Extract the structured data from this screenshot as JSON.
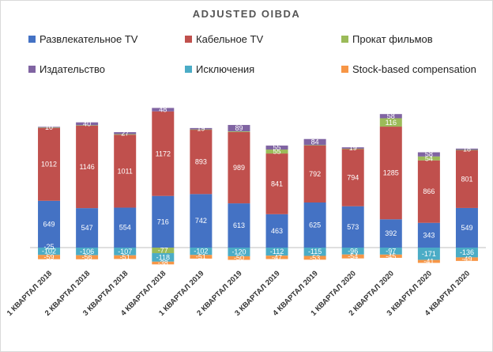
{
  "chart_data": {
    "type": "bar",
    "stacked": true,
    "title": "ADJUSTED OIBDA",
    "categories": [
      "1 КВАРТАЛ 2018",
      "2 КВАРТАЛ 2018",
      "3 КВАРТАЛ 2018",
      "4 КВАРТАЛ 2018",
      "1 КВАРТАЛ 2019",
      "2 КВАРТАЛ 2019",
      "3 КВАРТАЛ 2019",
      "4 КВАРТАЛ 2019",
      "1 КВАРТАЛ 2020",
      "2 КВАРТАЛ 2020",
      "3 КВАРТАЛ 2020",
      "4 КВАРТАЛ 2020"
    ],
    "series": [
      {
        "name": "Развлекательное TV",
        "color": "#4472C4",
        "values": [
          649,
          547,
          554,
          716,
          742,
          613,
          463,
          625,
          573,
          392,
          343,
          549
        ]
      },
      {
        "name": "Кабельное TV",
        "color": "#C0504D",
        "values": [
          1012,
          1146,
          1011,
          1172,
          893,
          989,
          841,
          792,
          794,
          1285,
          866,
          801
        ]
      },
      {
        "name": "Прокат фильмов",
        "color": "#9BBB59",
        "values": [
          3,
          3,
          8,
          -77,
          3,
          9,
          55,
          4,
          4,
          116,
          54,
          4
        ]
      },
      {
        "name": "Издательство",
        "color": "#8064A2",
        "values": [
          10,
          40,
          27,
          48,
          19,
          89,
          55,
          84,
          19,
          58,
          58,
          18
        ]
      },
      {
        "name": "Исключения",
        "color": "#4BACC6",
        "values": [
          -102,
          -106,
          -107,
          -118,
          -102,
          -120,
          -112,
          -115,
          -96,
          -97,
          -171,
          -136
        ]
      },
      {
        "name": "Stock-based compensation",
        "color": "#F79646",
        "values": [
          -59,
          -56,
          -51,
          -38,
          -51,
          -50,
          -47,
          -53,
          -54,
          -45,
          -41,
          -49
        ]
      }
    ],
    "data_labels": [
      [
        "649",
        "1012",
        "",
        "10",
        "-102",
        "-59"
      ],
      [
        "547",
        "1146",
        "",
        "40",
        "-106",
        "-56"
      ],
      [
        "554",
        "1011",
        "",
        "27",
        "-107",
        "-51"
      ],
      [
        "716",
        "1172",
        "-77",
        "48",
        "-118",
        "-38"
      ],
      [
        "742",
        "893",
        "",
        "19",
        "-102",
        "-51"
      ],
      [
        "613",
        "989",
        "",
        "89",
        "-120",
        "-50"
      ],
      [
        "463",
        "841",
        "55",
        "55",
        "-112",
        "-47"
      ],
      [
        "625",
        "792",
        "",
        "84",
        "-115",
        "-53"
      ],
      [
        "573",
        "794",
        "",
        "19",
        "-96",
        "-54"
      ],
      [
        "392",
        "1285",
        "116",
        "58",
        "-97",
        "-45"
      ],
      [
        "343",
        "866",
        "54",
        "58",
        "-171",
        "-41"
      ],
      [
        "549",
        "801",
        "",
        "18",
        "-136",
        "-49"
      ]
    ],
    "extra_labels": [
      {
        "category": 0,
        "text": "-25"
      }
    ],
    "ylim": [
      -240,
      2000
    ],
    "grid": false,
    "legend_position": "top"
  }
}
